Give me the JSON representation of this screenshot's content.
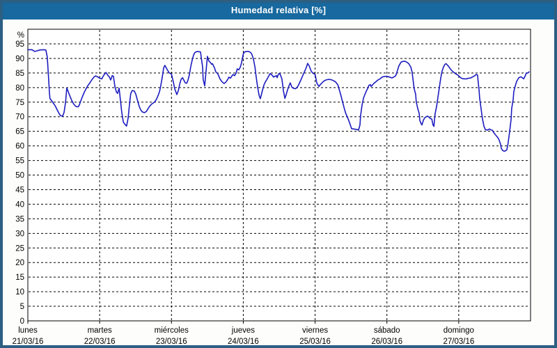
{
  "window": {
    "title": "Humedad relativa [%]"
  },
  "colors": {
    "titlebar_bg": "#17699f",
    "frame": "#2c5f82",
    "line": "#1c1cc0",
    "grid": "#000000",
    "plot_background": "#ffffff",
    "text": "#000000"
  },
  "chart_data": {
    "type": "line",
    "title": "Humedad relativa [%]",
    "ylabel": "%",
    "y_unit_label": "%",
    "ylim": [
      0,
      100
    ],
    "y_ticks": [
      95,
      90,
      85,
      80,
      75,
      70,
      65,
      60,
      55,
      50,
      45,
      40,
      35,
      30,
      25,
      20,
      15,
      10,
      5,
      0
    ],
    "grid": "dashed",
    "legend": "none",
    "x_total_hours": 168,
    "x_days": [
      {
        "name": "lunes",
        "date": "21/03/16",
        "hour": 0
      },
      {
        "name": "martes",
        "date": "22/03/16",
        "hour": 24
      },
      {
        "name": "miércoles",
        "date": "23/03/16",
        "hour": 48
      },
      {
        "name": "jueves",
        "date": "24/03/16",
        "hour": 72
      },
      {
        "name": "viernes",
        "date": "25/03/16",
        "hour": 96
      },
      {
        "name": "sábado",
        "date": "26/03/16",
        "hour": 120
      },
      {
        "name": "domingo",
        "date": "27/03/16",
        "hour": 144
      }
    ],
    "series": [
      {
        "name": "Humedad relativa",
        "points": [
          [
            0,
            93
          ],
          [
            1.4,
            93
          ],
          [
            2.3,
            92.4
          ],
          [
            3,
            92.6
          ],
          [
            4,
            92.9
          ],
          [
            5.4,
            93
          ],
          [
            6,
            92.9
          ],
          [
            6.5,
            90.5
          ],
          [
            6.7,
            87
          ],
          [
            7,
            82
          ],
          [
            7.2,
            78.5
          ],
          [
            7.4,
            76.2
          ],
          [
            7.9,
            75.6
          ],
          [
            8.4,
            74.8
          ],
          [
            9.1,
            73.8
          ],
          [
            9.8,
            72.4
          ],
          [
            10.5,
            71
          ],
          [
            10.9,
            70.4
          ],
          [
            11.6,
            70.2
          ],
          [
            12.1,
            71.5
          ],
          [
            12.6,
            75
          ],
          [
            13,
            79.9
          ],
          [
            13.5,
            78.6
          ],
          [
            14,
            77.2
          ],
          [
            14.7,
            75.5
          ],
          [
            15.4,
            74.2
          ],
          [
            16.1,
            73.5
          ],
          [
            16.8,
            73.4
          ],
          [
            17.2,
            74
          ],
          [
            17.9,
            76
          ],
          [
            18.6,
            77.8
          ],
          [
            19.3,
            79.3
          ],
          [
            20,
            80.6
          ],
          [
            20.7,
            81.6
          ],
          [
            21.4,
            82.7
          ],
          [
            22.1,
            83.6
          ],
          [
            22.6,
            84
          ],
          [
            23.3,
            83.7
          ],
          [
            24,
            83.2
          ],
          [
            24.7,
            83
          ],
          [
            25.4,
            84.3
          ],
          [
            26.1,
            85.2
          ],
          [
            26.8,
            84.1
          ],
          [
            27.2,
            83.7
          ],
          [
            27.7,
            82.6
          ],
          [
            28.2,
            84.1
          ],
          [
            28.6,
            83.9
          ],
          [
            29.1,
            80.3
          ],
          [
            29.6,
            78.5
          ],
          [
            30,
            78
          ],
          [
            30.5,
            79.8
          ],
          [
            30.9,
            76
          ],
          [
            31.4,
            71.5
          ],
          [
            31.9,
            68.2
          ],
          [
            32.3,
            67.6
          ],
          [
            32.8,
            67
          ],
          [
            33,
            66.8
          ],
          [
            33.5,
            69.5
          ],
          [
            34,
            74.5
          ],
          [
            34.4,
            78
          ],
          [
            34.9,
            79
          ],
          [
            35.6,
            78.8
          ],
          [
            36.1,
            77.7
          ],
          [
            36.8,
            75
          ],
          [
            37.2,
            73.6
          ],
          [
            37.7,
            72.4
          ],
          [
            38.2,
            71.7
          ],
          [
            38.9,
            71.4
          ],
          [
            39.6,
            71.8
          ],
          [
            40,
            72.5
          ],
          [
            40.5,
            73.3
          ],
          [
            41.2,
            74.2
          ],
          [
            41.6,
            74.5
          ],
          [
            42.3,
            75
          ],
          [
            43,
            76
          ],
          [
            43.5,
            77.2
          ],
          [
            44,
            78.6
          ],
          [
            44.4,
            80.5
          ],
          [
            44.9,
            83.5
          ],
          [
            45.4,
            86.8
          ],
          [
            45.8,
            87.6
          ],
          [
            46.5,
            86.3
          ],
          [
            47.2,
            85.1
          ],
          [
            48,
            84.6
          ],
          [
            48.6,
            82
          ],
          [
            49.1,
            79.5
          ],
          [
            49.8,
            77.6
          ],
          [
            50.3,
            79
          ],
          [
            50.7,
            81
          ],
          [
            51.2,
            82.8
          ],
          [
            51.7,
            83.4
          ],
          [
            52.1,
            82.6
          ],
          [
            52.6,
            81.6
          ],
          [
            53.1,
            81.5
          ],
          [
            53.5,
            82.5
          ],
          [
            54,
            84.5
          ],
          [
            54.4,
            87
          ],
          [
            54.9,
            89.3
          ],
          [
            55.4,
            91.2
          ],
          [
            55.8,
            92
          ],
          [
            56.5,
            92.4
          ],
          [
            57.2,
            92.3
          ],
          [
            57.7,
            92.2
          ],
          [
            57.9,
            90.8
          ],
          [
            58.4,
            87
          ],
          [
            58.6,
            82.8
          ],
          [
            59.1,
            80.6
          ],
          [
            59.6,
            86
          ],
          [
            60,
            90.7
          ],
          [
            60.5,
            89.1
          ],
          [
            61,
            88.6
          ],
          [
            61.4,
            88
          ],
          [
            61.7,
            88.2
          ],
          [
            62.4,
            86.7
          ],
          [
            62.8,
            85.4
          ],
          [
            63.5,
            84.7
          ],
          [
            64.2,
            83
          ],
          [
            64.7,
            82.2
          ],
          [
            65.2,
            81.7
          ],
          [
            65.6,
            81.4
          ],
          [
            66.1,
            81.8
          ],
          [
            66.8,
            82.8
          ],
          [
            67.2,
            83.6
          ],
          [
            67.7,
            83.2
          ],
          [
            68.2,
            84
          ],
          [
            68.6,
            84.5
          ],
          [
            69.1,
            84.1
          ],
          [
            69.6,
            85
          ],
          [
            70,
            86.4
          ],
          [
            70.5,
            86.1
          ],
          [
            71,
            87
          ],
          [
            71.4,
            88.5
          ],
          [
            72,
            91.5
          ],
          [
            72.4,
            92.2
          ],
          [
            73.1,
            92.4
          ],
          [
            73.8,
            92.4
          ],
          [
            74.5,
            92
          ],
          [
            74.9,
            91.3
          ],
          [
            75.4,
            89.8
          ],
          [
            75.9,
            87
          ],
          [
            76.3,
            83.7
          ],
          [
            76.8,
            80
          ],
          [
            77.3,
            77.3
          ],
          [
            77.7,
            76.2
          ],
          [
            78.4,
            79
          ],
          [
            78.9,
            80.9
          ],
          [
            79.3,
            81.8
          ],
          [
            80,
            83
          ],
          [
            80.5,
            84
          ],
          [
            81,
            84.8
          ],
          [
            81.7,
            84.2
          ],
          [
            82.1,
            83.6
          ],
          [
            82.6,
            83.9
          ],
          [
            83.1,
            84.1
          ],
          [
            83.3,
            83.4
          ],
          [
            83.8,
            84.7
          ],
          [
            84.2,
            84.8
          ],
          [
            84.9,
            83
          ],
          [
            85.4,
            79
          ],
          [
            85.9,
            76.3
          ],
          [
            86.3,
            77.5
          ],
          [
            86.8,
            79.2
          ],
          [
            87.3,
            80.7
          ],
          [
            87.7,
            81.6
          ],
          [
            88.2,
            80.2
          ],
          [
            88.7,
            79.8
          ],
          [
            89.4,
            79.6
          ],
          [
            90,
            80
          ],
          [
            90.7,
            81.4
          ],
          [
            91.4,
            83
          ],
          [
            91.9,
            84.2
          ],
          [
            92.6,
            85.8
          ],
          [
            93.1,
            87
          ],
          [
            93.5,
            88.3
          ],
          [
            94,
            87.5
          ],
          [
            94.7,
            85.6
          ],
          [
            95.2,
            85
          ],
          [
            96,
            84.5
          ],
          [
            96.6,
            81.5
          ],
          [
            97.3,
            80.4
          ],
          [
            97.7,
            81
          ],
          [
            98.2,
            81.5
          ],
          [
            98.9,
            82.2
          ],
          [
            99.6,
            82.6
          ],
          [
            100.5,
            82.8
          ],
          [
            101.4,
            82.7
          ],
          [
            102.1,
            82.4
          ],
          [
            102.8,
            82
          ],
          [
            103.6,
            81
          ],
          [
            104,
            79.5
          ],
          [
            104.7,
            77
          ],
          [
            105.2,
            75
          ],
          [
            105.9,
            72.3
          ],
          [
            106.3,
            71
          ],
          [
            107,
            69.4
          ],
          [
            107.5,
            68
          ],
          [
            108.2,
            65.9
          ],
          [
            108.9,
            65.8
          ],
          [
            109.6,
            65.7
          ],
          [
            110.1,
            65.6
          ],
          [
            110.5,
            65.4
          ],
          [
            111,
            67.2
          ],
          [
            111.2,
            70.4
          ],
          [
            111.7,
            74
          ],
          [
            112.2,
            76.5
          ],
          [
            112.9,
            78.3
          ],
          [
            113.6,
            79.8
          ],
          [
            114,
            80.8
          ],
          [
            114.5,
            81
          ],
          [
            114.7,
            80.4
          ],
          [
            115.2,
            80.9
          ],
          [
            115.6,
            81.4
          ],
          [
            116.3,
            82
          ],
          [
            117,
            82.6
          ],
          [
            117.7,
            83
          ],
          [
            118.4,
            83.6
          ],
          [
            119.1,
            83.8
          ],
          [
            120,
            83.9
          ],
          [
            120.5,
            83.7
          ],
          [
            121.2,
            83.5
          ],
          [
            121.7,
            83.3
          ],
          [
            122.2,
            83.6
          ],
          [
            122.9,
            84
          ],
          [
            123.5,
            85.8
          ],
          [
            124,
            87.4
          ],
          [
            124.7,
            88.7
          ],
          [
            125.4,
            89
          ],
          [
            126.1,
            89
          ],
          [
            126.8,
            88.6
          ],
          [
            127.3,
            88.2
          ],
          [
            128,
            87
          ],
          [
            128.4,
            85.4
          ],
          [
            128.7,
            83
          ],
          [
            129.1,
            79.7
          ],
          [
            129.6,
            77.7
          ],
          [
            129.8,
            75.2
          ],
          [
            130.3,
            72.8
          ],
          [
            130.8,
            71.1
          ],
          [
            131,
            68.7
          ],
          [
            131.5,
            67.5
          ],
          [
            131.7,
            67.2
          ],
          [
            132.2,
            68.8
          ],
          [
            132.6,
            69.6
          ],
          [
            133.1,
            70
          ],
          [
            133.6,
            70.2
          ],
          [
            134,
            69.9
          ],
          [
            134.5,
            69.4
          ],
          [
            135,
            69.2
          ],
          [
            135.4,
            67.2
          ],
          [
            135.7,
            66.7
          ],
          [
            136.1,
            71
          ],
          [
            136.6,
            73.6
          ],
          [
            137.3,
            78.5
          ],
          [
            138,
            83.4
          ],
          [
            138.4,
            85.5
          ],
          [
            138.9,
            87
          ],
          [
            139.4,
            88
          ],
          [
            139.8,
            88.2
          ],
          [
            140.5,
            87.4
          ],
          [
            141.2,
            86.4
          ],
          [
            141.9,
            85.6
          ],
          [
            142.6,
            85
          ],
          [
            143.8,
            84.2
          ],
          [
            144.5,
            83.5
          ],
          [
            145.2,
            83.1
          ],
          [
            145.9,
            83
          ],
          [
            146.6,
            83
          ],
          [
            147.3,
            83.2
          ],
          [
            148,
            83.3
          ],
          [
            148.7,
            83.7
          ],
          [
            149.4,
            84.1
          ],
          [
            149.8,
            84.5
          ],
          [
            150.3,
            84.3
          ],
          [
            150.5,
            82
          ],
          [
            150.8,
            79
          ],
          [
            151,
            76.4
          ],
          [
            151.5,
            72.5
          ],
          [
            151.9,
            69.5
          ],
          [
            152.4,
            66.8
          ],
          [
            152.9,
            65.6
          ],
          [
            153.6,
            65.4
          ],
          [
            154.3,
            65.8
          ],
          [
            154.7,
            65.5
          ],
          [
            155.2,
            65.4
          ],
          [
            155.7,
            64.6
          ],
          [
            156.1,
            64
          ],
          [
            156.6,
            63.4
          ],
          [
            157.1,
            62.8
          ],
          [
            157.5,
            62
          ],
          [
            158,
            60.5
          ],
          [
            158.2,
            59.2
          ],
          [
            158.7,
            58.4
          ],
          [
            159.2,
            58.2
          ],
          [
            159.6,
            58.3
          ],
          [
            160.1,
            58.7
          ],
          [
            160.5,
            61
          ],
          [
            161,
            64.8
          ],
          [
            161.5,
            69.2
          ],
          [
            161.7,
            72.8
          ],
          [
            162.2,
            76
          ],
          [
            162.4,
            78.5
          ],
          [
            162.9,
            80.6
          ],
          [
            163.4,
            82.2
          ],
          [
            164.1,
            83.4
          ],
          [
            164.8,
            83.7
          ],
          [
            165.2,
            83.4
          ],
          [
            165.7,
            83
          ],
          [
            166.2,
            84
          ],
          [
            166.6,
            85
          ],
          [
            167.1,
            85
          ],
          [
            167.5,
            85.4
          ]
        ]
      }
    ]
  }
}
